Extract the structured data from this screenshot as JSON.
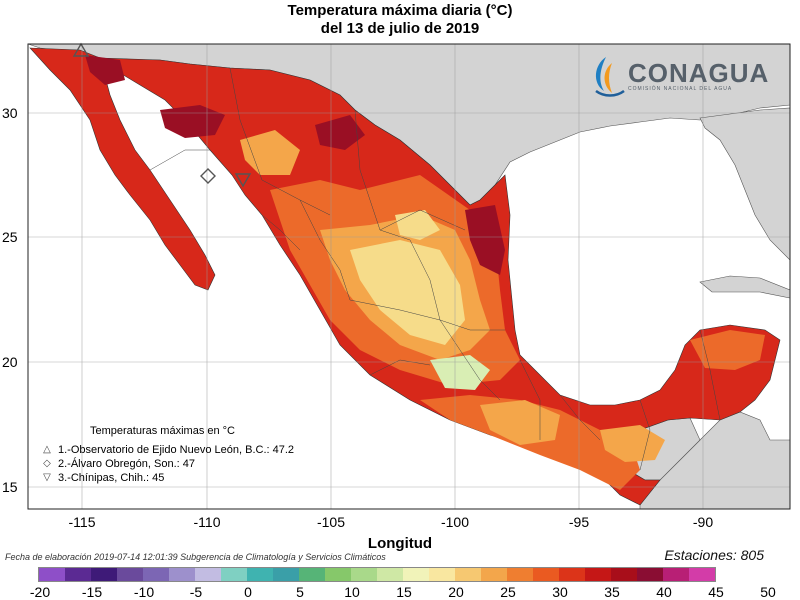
{
  "title": {
    "line1": "Temperatura máxima diaria (°C)",
    "line2": "del 13 de julio de 2019"
  },
  "axes": {
    "x_title": "Longitud",
    "y_ticks": [
      "30",
      "25",
      "20",
      "15"
    ],
    "x_ticks": [
      "-115",
      "-110",
      "-105",
      "-100",
      "-95",
      "-90"
    ]
  },
  "logo": {
    "name": "CONAGUA",
    "subtitle": "COMISIÓN NACIONAL DEL AGUA"
  },
  "legend": {
    "heading": "Temperaturas máximas en °C",
    "items": [
      {
        "symbol": "△",
        "text": "1.-Observatorio de Ejido Nuevo León, B.C.: 47.2"
      },
      {
        "symbol": "◇",
        "text": "2.-Álvaro Obregón, Son.: 47"
      },
      {
        "symbol": "▽",
        "text": "3.-Chínipas, Chih.: 45"
      }
    ]
  },
  "footer": {
    "text": "Fecha de elaboración 2019-07-14 12:01:39 Subgerencia de Climatología y Servicios Climáticos",
    "stations": "Estaciones:  805"
  },
  "colorbar": {
    "labels": [
      "-20",
      "-15",
      "-10",
      "-5",
      "0",
      "5",
      "10",
      "15",
      "20",
      "25",
      "30",
      "35",
      "40",
      "45",
      "50"
    ],
    "colors": [
      "#8e4fc8",
      "#5b2a93",
      "#3e1a78",
      "#6a4a9c",
      "#7c66b4",
      "#9d90cc",
      "#c2bce2",
      "#7fd0c2",
      "#3fb3b0",
      "#3a9fa8",
      "#56b477",
      "#86c86a",
      "#a9d98a",
      "#cfe8a5",
      "#f1f3b9",
      "#f9e7a0",
      "#f6c871",
      "#f3a64b",
      "#ef7e30",
      "#ea5a21",
      "#dc3419",
      "#c51716",
      "#a80e1a",
      "#8a0d33",
      "#b81f75",
      "#d33ca8"
    ]
  },
  "colors": {
    "land_hot": "#d7281a",
    "land_mid": "#ec6a2a",
    "land_warm": "#f4a64a",
    "land_cool": "#f6dc8a",
    "land_coolest": "#d9eeb4",
    "dark_hot": "#9a0f24",
    "other_land": "#d3d3d3",
    "water": "#ffffff"
  }
}
